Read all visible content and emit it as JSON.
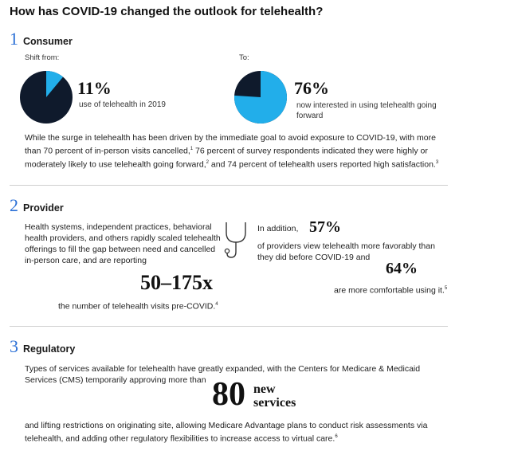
{
  "title": "How has COVID-19 changed the outlook for telehealth?",
  "consumer": {
    "number": "1",
    "heading": "Consumer",
    "shift_label": "Shift from:",
    "to_label": "To:",
    "stat1_value": "11%",
    "stat1_fraction": 0.11,
    "stat1_text": "use of telehealth in 2019",
    "stat2_value": "76%",
    "stat2_fraction": 0.76,
    "stat2_text": "now interested in using telehealth going forward",
    "paragraph_a": "While the surge in telehealth has been driven by the immediate goal to avoid exposure to COVID-19, with more than 70 percent of in-person visits cancelled,",
    "sup1": "1",
    "paragraph_b": " 76 percent of survey respondents indicated they were highly or moderately likely to use telehealth going forward,",
    "sup2": "2",
    "paragraph_c": " and 74 percent of telehealth users reported high satisfaction.",
    "sup3": "3"
  },
  "provider": {
    "number": "2",
    "heading": "Provider",
    "left_text": "Health systems, independent practices, behavioral health providers, and others rapidly scaled telehealth offerings to fill the gap between need and cancelled in-person care, and are reporting",
    "range": "50–175x",
    "range_caption": "the number of telehealth visits pre-COVID.",
    "sup4": "4",
    "in_addition": "In addition,",
    "stat_a": "57%",
    "stat_a_text": "of providers view telehealth more favorably than they did before COVID-19 and",
    "stat_b": "64%",
    "stat_b_text": "are more comfortable using it.",
    "sup5": "5"
  },
  "regulatory": {
    "number": "3",
    "heading": "Regulatory",
    "text_a": "Types of services available for telehealth have greatly expanded, with the Centers for Medicare & Medicaid Services (CMS) temporarily approving more than",
    "big_number": "80",
    "big_word1": "new",
    "big_word2": "services",
    "text_b": "and lifting restrictions on originating site, allowing Medicare Advantage plans to conduct risk assessments via telehealth, and adding other regulatory flexibilities to increase access to virtual care.",
    "sup6": "6"
  },
  "colors": {
    "accent_blue": "#2a6fd6",
    "pie_light": "#22aeea",
    "pie_dark": "#0f1a2c"
  },
  "icons": {
    "stethoscope": "stethoscope-icon"
  }
}
